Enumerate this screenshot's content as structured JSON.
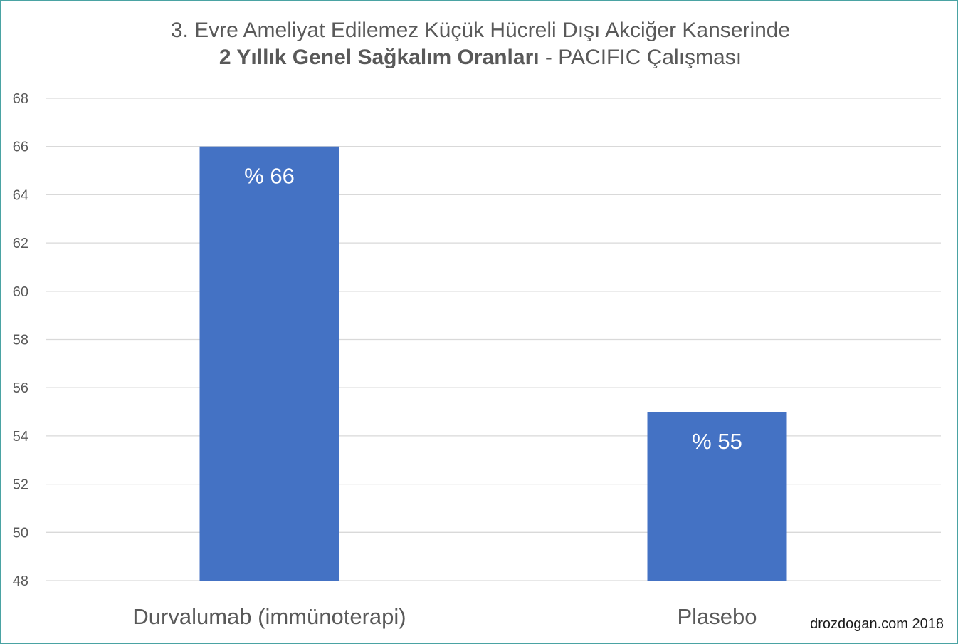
{
  "title": {
    "line1": "3. Evre Ameliyat Edilemez Küçük Hücreli Dışı Akciğer Kanserinde",
    "line2_bold": "2 Yıllık Genel Sağkalım Oranları",
    "line2_rest": " - PACIFIC Çalışması"
  },
  "credit": "drozdogan.com 2018",
  "colors": {
    "bar": "#4472c4",
    "grid": "#d9d9d9",
    "axis_text": "#595959",
    "frame": "#4aa3a3"
  },
  "chart_data": {
    "type": "bar",
    "categories": [
      "Durvalumab (immünoterapi)",
      "Plasebo"
    ],
    "values": [
      66,
      55
    ],
    "data_labels": [
      "% 66",
      "% 55"
    ],
    "ylim": [
      48,
      68
    ],
    "yticks": [
      48,
      50,
      52,
      54,
      56,
      58,
      60,
      62,
      64,
      66,
      68
    ],
    "grid": true,
    "legend": "none"
  }
}
